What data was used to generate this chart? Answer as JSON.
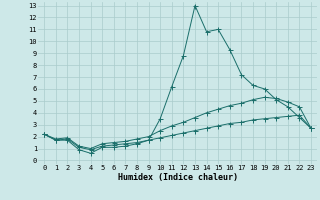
{
  "xlabel": "Humidex (Indice chaleur)",
  "ylabel": "",
  "xlim": [
    -0.5,
    23.5
  ],
  "ylim": [
    -0.3,
    13.3
  ],
  "yticks": [
    0,
    1,
    2,
    3,
    4,
    5,
    6,
    7,
    8,
    9,
    10,
    11,
    12,
    13
  ],
  "xticks": [
    0,
    1,
    2,
    3,
    4,
    5,
    6,
    7,
    8,
    9,
    10,
    11,
    12,
    13,
    14,
    15,
    16,
    17,
    18,
    19,
    20,
    21,
    22,
    23
  ],
  "bg_color": "#cde8e8",
  "grid_color": "#aacccc",
  "line_color": "#1a6e6a",
  "line1_x": [
    0,
    1,
    2,
    3,
    4,
    5,
    6,
    7,
    8,
    9,
    10,
    11,
    12,
    13,
    14,
    15,
    16,
    17,
    18,
    19,
    20,
    21,
    22,
    23
  ],
  "line1_y": [
    2.2,
    1.7,
    1.7,
    0.9,
    0.6,
    1.1,
    1.1,
    1.2,
    1.4,
    1.7,
    3.5,
    6.2,
    8.8,
    13.0,
    10.8,
    11.0,
    9.3,
    7.2,
    6.3,
    6.0,
    5.1,
    4.5,
    3.6,
    2.7
  ],
  "line2_x": [
    0,
    1,
    2,
    3,
    4,
    5,
    6,
    7,
    8,
    9,
    10,
    11,
    12,
    13,
    14,
    15,
    16,
    17,
    18,
    19,
    20,
    21,
    22,
    23
  ],
  "line2_y": [
    2.2,
    1.8,
    1.9,
    1.2,
    1.0,
    1.4,
    1.5,
    1.6,
    1.8,
    2.0,
    2.5,
    2.9,
    3.2,
    3.6,
    4.0,
    4.3,
    4.6,
    4.8,
    5.1,
    5.3,
    5.2,
    4.9,
    4.5,
    2.7
  ],
  "line3_x": [
    0,
    1,
    2,
    3,
    4,
    5,
    6,
    7,
    8,
    9,
    10,
    11,
    12,
    13,
    14,
    15,
    16,
    17,
    18,
    19,
    20,
    21,
    22,
    23
  ],
  "line3_y": [
    2.2,
    1.7,
    1.8,
    1.1,
    0.9,
    1.2,
    1.3,
    1.4,
    1.5,
    1.7,
    1.9,
    2.1,
    2.3,
    2.5,
    2.7,
    2.9,
    3.1,
    3.2,
    3.4,
    3.5,
    3.6,
    3.7,
    3.8,
    2.7
  ],
  "tick_fontsize": 5,
  "xlabel_fontsize": 6,
  "marker_size": 1.8,
  "line_width": 0.7
}
